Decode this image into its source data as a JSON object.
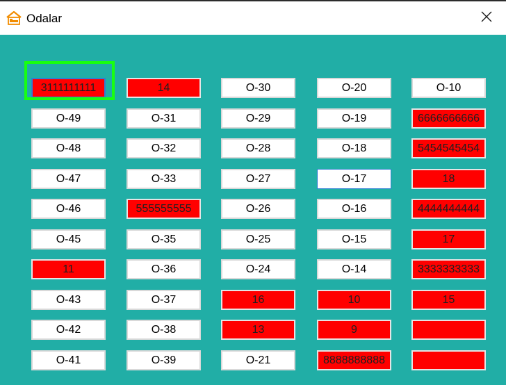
{
  "window": {
    "title": "Odalar",
    "icon": "bed-house-icon",
    "close_icon": "close-icon",
    "client_bg": "#21aea6"
  },
  "colors": {
    "occupied": "#ff0000",
    "free": "#ffffff",
    "highlight": "#18ff10",
    "focus": "#2f7fd1"
  },
  "rooms": [
    [
      "3111111111",
      "14",
      "O-30",
      "O-20",
      "O-10"
    ],
    [
      "O-49",
      "O-31",
      "O-29",
      "O-19",
      "6666666666"
    ],
    [
      "O-48",
      "O-32",
      "O-28",
      "O-18",
      "5454545454"
    ],
    [
      "O-47",
      "O-33",
      "O-27",
      "O-17",
      "18"
    ],
    [
      "O-46",
      "555555555",
      "O-26",
      "O-16",
      "4444444444"
    ],
    [
      "O-45",
      "O-35",
      "O-25",
      "O-15",
      "17"
    ],
    [
      "11",
      "O-36",
      "O-24",
      "O-14",
      "3333333333"
    ],
    [
      "O-43",
      "O-37",
      "16",
      "10",
      "15"
    ],
    [
      "O-42",
      "O-38",
      "13",
      "9",
      ""
    ],
    [
      "O-41",
      "O-39",
      "O-21",
      "8888888888",
      ""
    ]
  ],
  "occupied": [
    [
      true,
      true,
      false,
      false,
      false
    ],
    [
      false,
      false,
      false,
      false,
      true
    ],
    [
      false,
      false,
      false,
      false,
      true
    ],
    [
      false,
      false,
      false,
      false,
      true
    ],
    [
      false,
      true,
      false,
      false,
      true
    ],
    [
      false,
      false,
      false,
      false,
      true
    ],
    [
      true,
      false,
      false,
      false,
      true
    ],
    [
      false,
      false,
      true,
      true,
      true
    ],
    [
      false,
      false,
      true,
      true,
      true
    ],
    [
      false,
      false,
      false,
      true,
      true
    ]
  ],
  "selected_room": "3111111111",
  "focused_room": "O-17"
}
